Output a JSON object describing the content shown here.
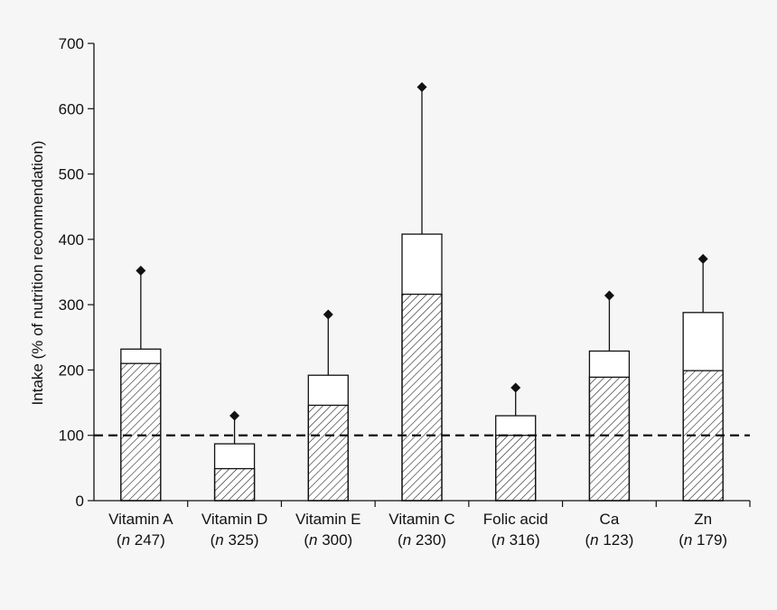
{
  "chart_data": {
    "type": "bar",
    "title": "",
    "xlabel": "",
    "ylabel": "Intake  (% of nutrition recommendation)",
    "ylim": [
      0,
      700
    ],
    "yticks": [
      0,
      100,
      200,
      300,
      400,
      500,
      600,
      700
    ],
    "reference_line": 100,
    "grid": false,
    "categories": [
      {
        "label": "Vitamin A",
        "n_prefix": "(",
        "n_italic": "n",
        "n_value": " 247)"
      },
      {
        "label": "Vitamin D",
        "n_prefix": "(",
        "n_italic": "n",
        "n_value": " 325)"
      },
      {
        "label": "Vitamin E",
        "n_prefix": "(",
        "n_italic": "n",
        "n_value": " 300)"
      },
      {
        "label": "Vitamin C",
        "n_prefix": "(",
        "n_italic": "n",
        "n_value": " 230)"
      },
      {
        "label": "Folic acid",
        "n_prefix": "(",
        "n_italic": "n",
        "n_value": " 316)"
      },
      {
        "label": "Ca",
        "n_prefix": "(",
        "n_italic": "n",
        "n_value": " 123)"
      },
      {
        "label": "Zn",
        "n_prefix": "(",
        "n_italic": "n",
        "n_value": " 179)"
      }
    ],
    "series": [
      {
        "pattern": "hatched",
        "values": [
          210,
          49,
          146,
          316,
          100,
          189,
          199
        ]
      },
      {
        "pattern": "open",
        "values": [
          232,
          87,
          192,
          408,
          130,
          229,
          288
        ]
      },
      {
        "marker": "diamond",
        "values": [
          352,
          130,
          285,
          633,
          173,
          314,
          370
        ]
      }
    ]
  }
}
